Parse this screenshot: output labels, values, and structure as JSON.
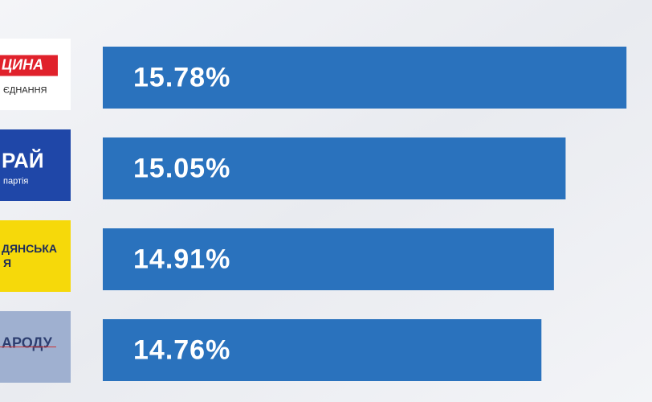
{
  "chart_data": {
    "type": "hbar",
    "categories": [
      "ЦИНА",
      "РАЙ",
      "ДЯНСЬКА",
      "АРОДУ"
    ],
    "category_sublabels": [
      "ЄДНАННЯ",
      "партія",
      "Я",
      null
    ],
    "logo_colors": [
      "#ffffff",
      "#1f47a8",
      "#f6d90a",
      "#9fb0d0"
    ],
    "values": [
      15.78,
      15.05,
      14.91,
      14.76
    ],
    "value_labels": [
      "15.78%",
      "15.05%",
      "14.91%",
      "14.76%"
    ],
    "color": "#2a72bd",
    "xlim": [
      9.5,
      16.5
    ]
  }
}
